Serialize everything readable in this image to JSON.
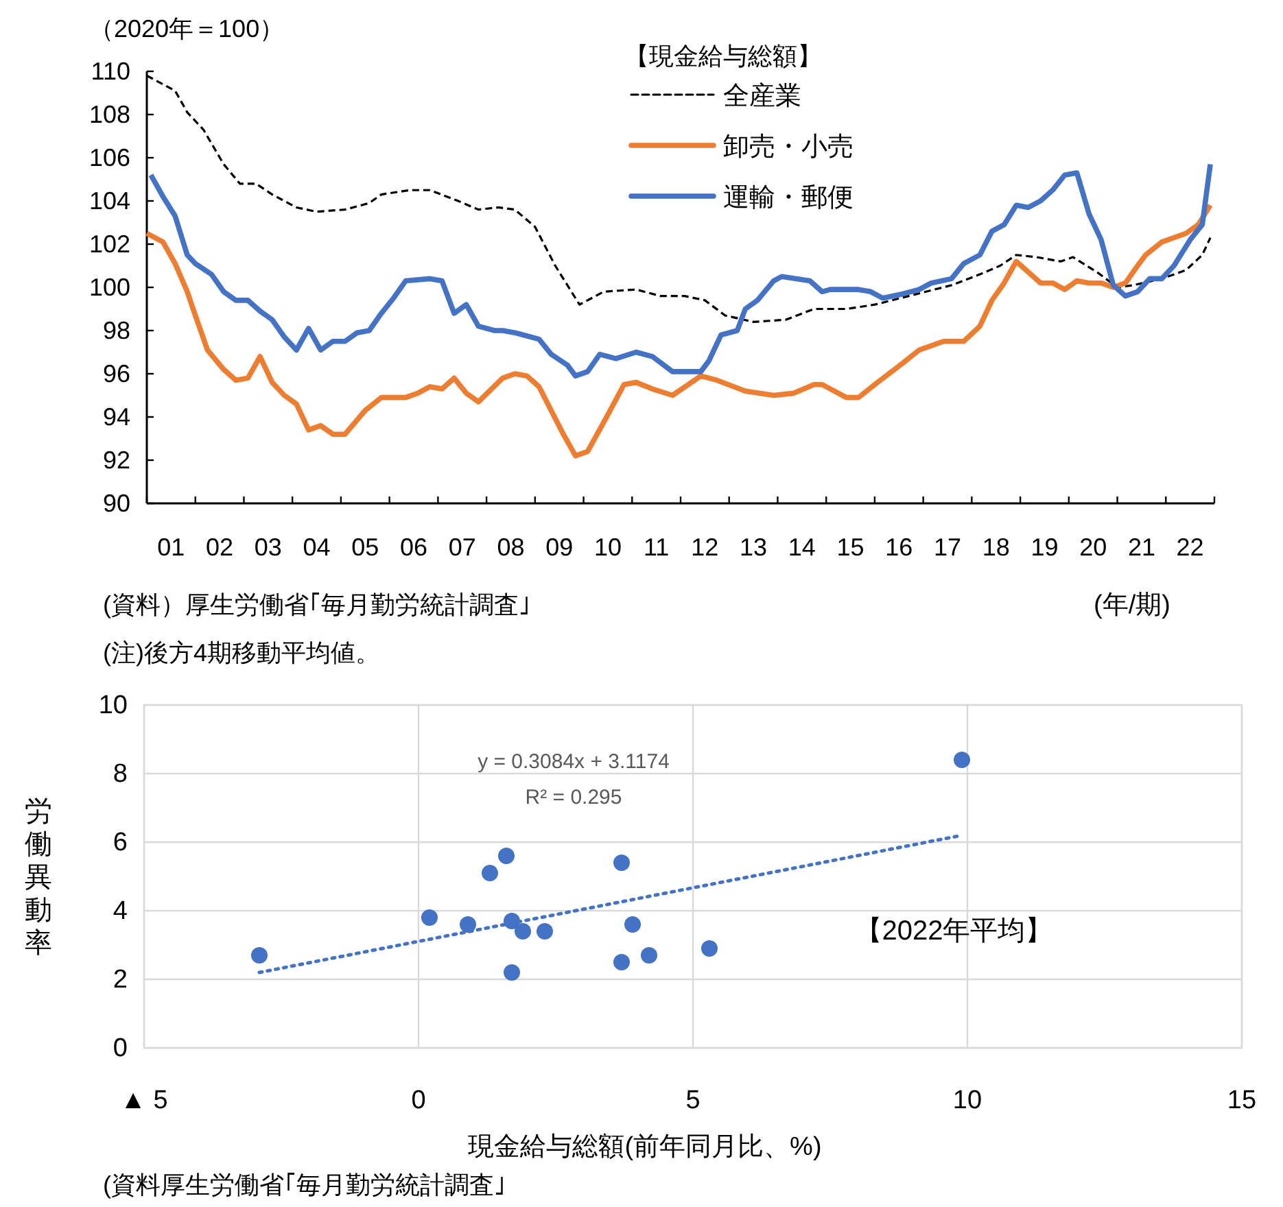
{
  "chart_data": [
    {
      "type": "line",
      "ylabel": "（2020年＝100）",
      "xlabel": "(年/期)",
      "legend_title": "【現金給与総額】",
      "legend": "top",
      "xlim": [
        "2001-01",
        "2023-01"
      ],
      "ylim": [
        90,
        110
      ],
      "yticks": [
        90,
        92,
        94,
        96,
        98,
        100,
        102,
        104,
        106,
        108,
        110
      ],
      "xticks": [
        {
          "value": "2001-01",
          "label": null
        },
        {
          "value": "2002-01",
          "label": null
        },
        {
          "value": "2003-01",
          "label": null
        },
        {
          "value": "2004-01",
          "label": null
        },
        {
          "value": "2005-01",
          "label": null
        },
        {
          "value": "2006-01",
          "label": null
        },
        {
          "value": "2007-01",
          "label": null
        },
        {
          "value": "2008-01",
          "label": null
        },
        {
          "value": "2009-01",
          "label": null
        },
        {
          "value": "2010-01",
          "label": null
        },
        {
          "value": "2011-01",
          "label": null
        },
        {
          "value": "2012-01",
          "label": null
        },
        {
          "value": "2013-01",
          "label": null
        },
        {
          "value": "2014-01",
          "label": null
        },
        {
          "value": "2015-01",
          "label": null
        },
        {
          "value": "2016-01",
          "label": null
        },
        {
          "value": "2017-01",
          "label": null
        },
        {
          "value": "2018-01",
          "label": null
        },
        {
          "value": "2019-01",
          "label": null
        },
        {
          "value": "2020-01",
          "label": null
        },
        {
          "value": "2021-01",
          "label": null
        },
        {
          "value": "2022-01",
          "label": null
        },
        {
          "value": "2023-01",
          "label": null
        },
        {
          "value": "2001-07",
          "label": "01"
        },
        {
          "value": "2002-07",
          "label": "02"
        },
        {
          "value": "2003-07",
          "label": "03"
        },
        {
          "value": "2004-07",
          "label": "04"
        },
        {
          "value": "2005-07",
          "label": "05"
        },
        {
          "value": "2006-07",
          "label": "06"
        },
        {
          "value": "2007-07",
          "label": "07"
        },
        {
          "value": "2008-07",
          "label": "08"
        },
        {
          "value": "2009-07",
          "label": "09"
        },
        {
          "value": "2010-07",
          "label": "10"
        },
        {
          "value": "2011-07",
          "label": "11"
        },
        {
          "value": "2012-07",
          "label": "12"
        },
        {
          "value": "2013-07",
          "label": "13"
        },
        {
          "value": "2014-07",
          "label": "14"
        },
        {
          "value": "2015-07",
          "label": "15"
        },
        {
          "value": "2016-07",
          "label": "16"
        },
        {
          "value": "2017-07",
          "label": "17"
        },
        {
          "value": "2018-07",
          "label": "18"
        },
        {
          "value": "2019-07",
          "label": "19"
        },
        {
          "value": "2020-07",
          "label": "20"
        },
        {
          "value": "2021-07",
          "label": "21"
        },
        {
          "value": "2022-07",
          "label": "22"
        }
      ],
      "series": [
        {
          "name": "全産業",
          "color": "#000000",
          "line_style": "dashed",
          "x": [
            "2001-01",
            "2001-08",
            "2001-11",
            "2002-03",
            "2002-08",
            "2002-12",
            "2003-04",
            "2003-08",
            "2004-02",
            "2004-07",
            "2005-02",
            "2005-08",
            "2005-11",
            "2006-06",
            "2006-11",
            "2007-06",
            "2007-11",
            "2008-04",
            "2008-08",
            "2009-01",
            "2009-06",
            "2009-12",
            "2010-06",
            "2011-02",
            "2011-08",
            "2012-02",
            "2012-07",
            "2012-12",
            "2013-07",
            "2014-03",
            "2014-10",
            "2015-06",
            "2016-01",
            "2017-08",
            "2018-03",
            "2018-08",
            "2018-12",
            "2019-05",
            "2019-11",
            "2020-02",
            "2020-08",
            "2021-01",
            "2021-05",
            "2021-12",
            "2022-06",
            "2022-10",
            "2022-12"
          ],
          "values": [
            109.8,
            109.1,
            108.1,
            107.3,
            105.7,
            104.8,
            104.8,
            104.3,
            103.7,
            103.5,
            103.6,
            103.9,
            104.3,
            104.5,
            104.5,
            104.0,
            103.6,
            103.7,
            103.6,
            102.8,
            101.0,
            99.2,
            99.8,
            99.9,
            99.6,
            99.6,
            99.4,
            98.7,
            98.4,
            98.5,
            99.0,
            99.0,
            99.2,
            100.1,
            100.6,
            101.0,
            101.5,
            101.4,
            101.2,
            101.4,
            100.7,
            100.0,
            100.1,
            100.4,
            100.8,
            101.5,
            102.3
          ]
        },
        {
          "name": "卸売・小売",
          "color": "#ed7d31",
          "line_style": "solid",
          "x": [
            "2001-01",
            "2001-05",
            "2001-08",
            "2001-11",
            "2002-01",
            "2002-04",
            "2002-08",
            "2002-11",
            "2003-02",
            "2003-05",
            "2003-08",
            "2003-11",
            "2004-02",
            "2004-05",
            "2004-08",
            "2004-11",
            "2005-02",
            "2005-07",
            "2005-11",
            "2006-05",
            "2006-08",
            "2006-11",
            "2007-02",
            "2007-05",
            "2007-08",
            "2007-11",
            "2008-05",
            "2008-08",
            "2008-11",
            "2009-02",
            "2009-08",
            "2009-11",
            "2010-02",
            "2010-07",
            "2010-11",
            "2011-02",
            "2011-06",
            "2011-11",
            "2012-06",
            "2012-10",
            "2013-05",
            "2013-12",
            "2014-05",
            "2014-10",
            "2014-12",
            "2015-06",
            "2015-09",
            "2016-01",
            "2016-08",
            "2016-12",
            "2017-06",
            "2017-11",
            "2018-03",
            "2018-06",
            "2018-09",
            "2018-12",
            "2019-03",
            "2019-06",
            "2019-09",
            "2019-12",
            "2020-03",
            "2020-06",
            "2020-09",
            "2020-12",
            "2021-03",
            "2021-06",
            "2021-08",
            "2021-12",
            "2022-06",
            "2022-09",
            "2022-12"
          ],
          "values": [
            102.5,
            102.1,
            101.1,
            99.8,
            98.7,
            97.1,
            96.2,
            95.7,
            95.8,
            96.8,
            95.6,
            95.0,
            94.6,
            93.4,
            93.6,
            93.2,
            93.2,
            94.3,
            94.9,
            94.9,
            95.1,
            95.4,
            95.3,
            95.8,
            95.1,
            94.7,
            95.8,
            96.0,
            95.9,
            95.4,
            93.2,
            92.2,
            92.4,
            94.1,
            95.5,
            95.6,
            95.3,
            95.0,
            95.9,
            95.7,
            95.2,
            95.0,
            95.1,
            95.5,
            95.5,
            94.9,
            94.9,
            95.5,
            96.5,
            97.1,
            97.5,
            97.5,
            98.2,
            99.4,
            100.2,
            101.2,
            100.7,
            100.2,
            100.2,
            99.9,
            100.3,
            100.2,
            100.2,
            100.0,
            100.2,
            101.0,
            101.5,
            102.1,
            102.5,
            102.9,
            103.8
          ]
        },
        {
          "name": "運輸・郵便",
          "color": "#4472c4",
          "line_style": "solid",
          "x": [
            "2001-02",
            "2001-05",
            "2001-08",
            "2001-11",
            "2002-01",
            "2002-05",
            "2002-08",
            "2002-11",
            "2003-02",
            "2003-05",
            "2003-08",
            "2003-11",
            "2004-02",
            "2004-05",
            "2004-08",
            "2004-11",
            "2005-02",
            "2005-05",
            "2005-08",
            "2005-11",
            "2006-02",
            "2006-05",
            "2006-11",
            "2007-02",
            "2007-05",
            "2007-08",
            "2007-11",
            "2008-03",
            "2008-05",
            "2008-08",
            "2009-02",
            "2009-05",
            "2009-09",
            "2009-11",
            "2010-02",
            "2010-05",
            "2010-09",
            "2011-02",
            "2011-06",
            "2011-11",
            "2012-06",
            "2012-08",
            "2012-11",
            "2013-03",
            "2013-05",
            "2013-08",
            "2013-12",
            "2014-02",
            "2014-09",
            "2014-12",
            "2015-02",
            "2015-09",
            "2015-12",
            "2016-03",
            "2016-08",
            "2016-12",
            "2017-03",
            "2017-08",
            "2017-11",
            "2018-03",
            "2018-06",
            "2018-09",
            "2018-12",
            "2019-03",
            "2019-06",
            "2019-09",
            "2019-12",
            "2020-03",
            "2020-06",
            "2020-09",
            "2020-12",
            "2021-03",
            "2021-06",
            "2021-09",
            "2021-12",
            "2022-03",
            "2022-07",
            "2022-10",
            "2022-12"
          ],
          "values": [
            105.2,
            104.2,
            103.3,
            101.5,
            101.1,
            100.6,
            99.8,
            99.4,
            99.4,
            98.9,
            98.5,
            97.7,
            97.1,
            98.1,
            97.1,
            97.5,
            97.5,
            97.9,
            98.0,
            98.8,
            99.5,
            100.3,
            100.4,
            100.3,
            98.8,
            99.2,
            98.2,
            98.0,
            98.0,
            97.9,
            97.6,
            96.9,
            96.4,
            95.9,
            96.1,
            96.9,
            96.7,
            97.0,
            96.8,
            96.1,
            96.1,
            96.6,
            97.8,
            98.0,
            99.0,
            99.4,
            100.3,
            100.5,
            100.3,
            99.8,
            99.9,
            99.9,
            99.8,
            99.5,
            99.7,
            99.9,
            100.2,
            100.4,
            101.1,
            101.5,
            102.6,
            102.9,
            103.8,
            103.7,
            104.0,
            104.5,
            105.2,
            105.3,
            103.4,
            102.2,
            100.1,
            99.6,
            99.8,
            100.4,
            100.4,
            101.0,
            102.2,
            102.9,
            105.7
          ]
        }
      ],
      "annotations": [
        "(資料）厚生労働省｢毎月勤労統計調査｣",
        "(注)後方4期移動平均値。"
      ]
    },
    {
      "type": "scatter",
      "xlabel": "現金給与総額(前年同月比、%)",
      "ylabel": "労働異動率",
      "grid": true,
      "marker": "circle",
      "xlim": [
        -5,
        15
      ],
      "ylim": [
        0,
        10
      ],
      "xticks": [
        {
          "value": -5,
          "label": "▲ 5"
        },
        0,
        5,
        10,
        15
      ],
      "yticks": [
        0,
        2,
        4,
        6,
        8,
        10
      ],
      "series": [
        {
          "color": "#4472c4",
          "x": [
            -2.9,
            0.2,
            0.9,
            1.3,
            1.6,
            1.7,
            1.7,
            1.9,
            2.3,
            3.7,
            3.7,
            3.9,
            4.2,
            5.3,
            9.9
          ],
          "values": [
            2.7,
            3.8,
            3.6,
            5.1,
            5.6,
            3.7,
            2.2,
            3.4,
            3.4,
            5.4,
            2.5,
            3.6,
            2.7,
            2.9,
            8.4
          ]
        },
        {
          "type": "line",
          "color": "#4472c4",
          "line_style": "dotted",
          "marker": "none",
          "x": [
            -2.9,
            9.9
          ],
          "values": [
            2.2,
            6.2
          ]
        }
      ],
      "annotations": [
        "y = 0.3084x + 3.1174",
        "R² = 0.295",
        "【2022年平均】",
        "(資料厚生労働省｢毎月勤労統計調査｣"
      ]
    }
  ]
}
